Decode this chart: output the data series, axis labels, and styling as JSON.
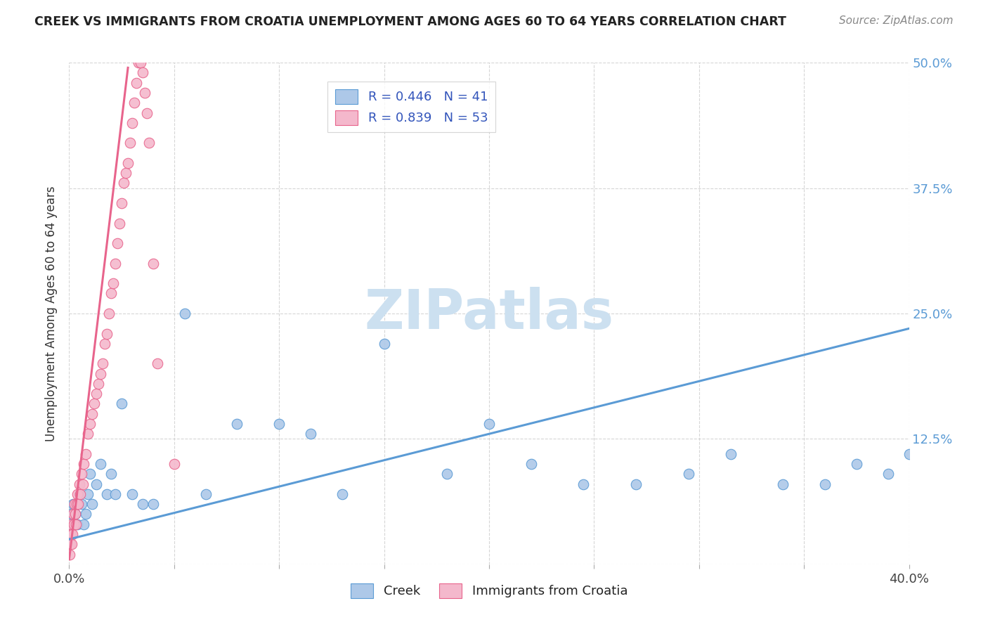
{
  "title": "CREEK VS IMMIGRANTS FROM CROATIA UNEMPLOYMENT AMONG AGES 60 TO 64 YEARS CORRELATION CHART",
  "source": "Source: ZipAtlas.com",
  "ylabel": "Unemployment Among Ages 60 to 64 years",
  "xlim": [
    0.0,
    0.4
  ],
  "ylim": [
    0.0,
    0.5
  ],
  "creek_R": 0.446,
  "creek_N": 41,
  "croatia_R": 0.839,
  "croatia_N": 53,
  "creek_color": "#adc8e8",
  "creek_edge_color": "#5b9bd5",
  "croatia_color": "#f4b8cc",
  "croatia_edge_color": "#e8648c",
  "creek_line_color": "#5b9bd5",
  "croatia_line_color": "#e8648c",
  "legend_text_color": "#3355bb",
  "watermark_color": "#cce0f0",
  "creek_x": [
    0.0005,
    0.001,
    0.0015,
    0.002,
    0.003,
    0.004,
    0.005,
    0.006,
    0.007,
    0.008,
    0.009,
    0.01,
    0.011,
    0.013,
    0.015,
    0.018,
    0.02,
    0.022,
    0.025,
    0.03,
    0.035,
    0.04,
    0.055,
    0.065,
    0.08,
    0.1,
    0.115,
    0.13,
    0.15,
    0.18,
    0.2,
    0.22,
    0.245,
    0.27,
    0.295,
    0.315,
    0.34,
    0.36,
    0.375,
    0.39,
    0.4
  ],
  "creek_y": [
    0.03,
    0.05,
    0.04,
    0.06,
    0.05,
    0.04,
    0.07,
    0.06,
    0.04,
    0.05,
    0.07,
    0.09,
    0.06,
    0.08,
    0.1,
    0.07,
    0.09,
    0.07,
    0.16,
    0.07,
    0.06,
    0.06,
    0.25,
    0.07,
    0.14,
    0.14,
    0.13,
    0.07,
    0.22,
    0.09,
    0.14,
    0.1,
    0.08,
    0.08,
    0.09,
    0.11,
    0.08,
    0.08,
    0.1,
    0.09,
    0.11
  ],
  "croatia_x": [
    0.0003,
    0.0005,
    0.0008,
    0.001,
    0.0012,
    0.0015,
    0.002,
    0.0022,
    0.0025,
    0.003,
    0.0032,
    0.0035,
    0.004,
    0.0042,
    0.005,
    0.0052,
    0.006,
    0.0065,
    0.007,
    0.008,
    0.009,
    0.01,
    0.011,
    0.012,
    0.013,
    0.014,
    0.015,
    0.016,
    0.017,
    0.018,
    0.019,
    0.02,
    0.021,
    0.022,
    0.023,
    0.024,
    0.025,
    0.026,
    0.027,
    0.028,
    0.029,
    0.03,
    0.031,
    0.032,
    0.033,
    0.034,
    0.035,
    0.036,
    0.037,
    0.038,
    0.04,
    0.042,
    0.05
  ],
  "croatia_y": [
    0.01,
    0.02,
    0.03,
    0.04,
    0.02,
    0.03,
    0.05,
    0.04,
    0.06,
    0.05,
    0.04,
    0.06,
    0.07,
    0.06,
    0.08,
    0.07,
    0.09,
    0.08,
    0.1,
    0.11,
    0.13,
    0.14,
    0.15,
    0.16,
    0.17,
    0.18,
    0.19,
    0.2,
    0.22,
    0.23,
    0.25,
    0.27,
    0.28,
    0.3,
    0.32,
    0.34,
    0.36,
    0.38,
    0.39,
    0.4,
    0.42,
    0.44,
    0.46,
    0.48,
    0.5,
    0.5,
    0.49,
    0.47,
    0.45,
    0.42,
    0.3,
    0.2,
    0.1
  ],
  "creek_line_x": [
    0.0,
    0.4
  ],
  "creek_line_y": [
    0.025,
    0.235
  ],
  "croatia_line_x": [
    0.0,
    0.028
  ],
  "croatia_line_y": [
    0.005,
    0.495
  ]
}
